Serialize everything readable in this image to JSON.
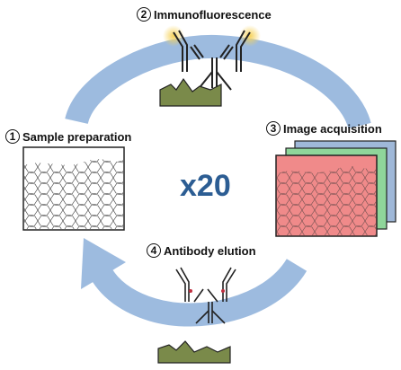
{
  "steps": [
    {
      "number": "1",
      "label": "Sample preparation"
    },
    {
      "number": "2",
      "label": "Immunofluorescence"
    },
    {
      "number": "3",
      "label": "Image acquisition"
    },
    {
      "number": "4",
      "label": "Antibody elution"
    }
  ],
  "cycle_count": "x20",
  "colors": {
    "arrow": "#9dbbdf",
    "center_text": "#2c5d93",
    "tissue": "#7a8a4a",
    "image_red": "#f08a8a",
    "image_green": "#8fd69a",
    "image_blue": "#9fb8d8",
    "fluor_glow": "#f6d25a"
  }
}
